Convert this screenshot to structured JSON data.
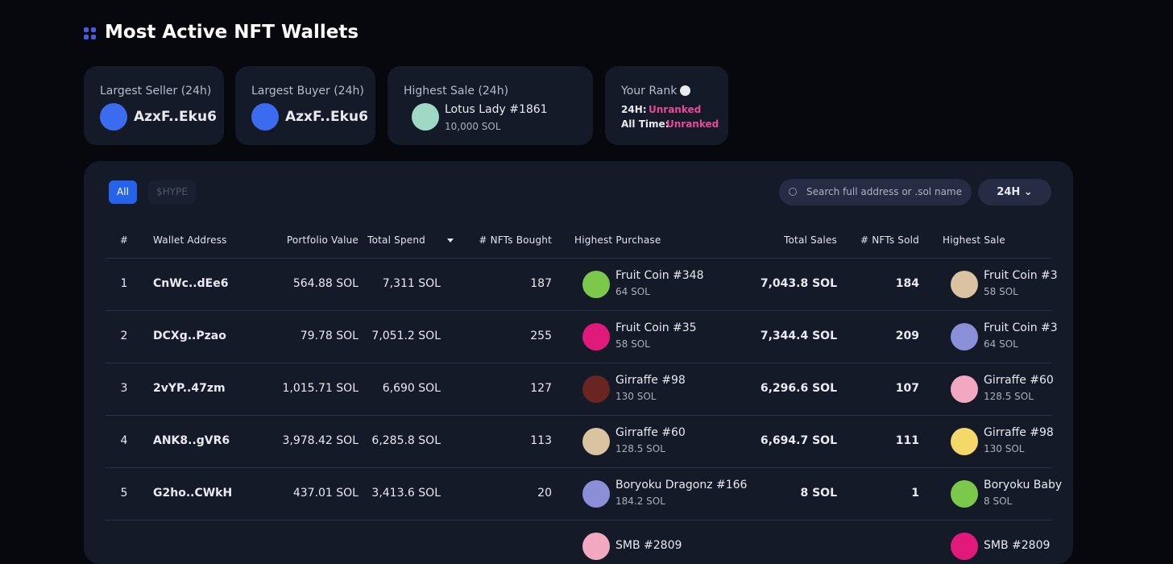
{
  "header": {
    "title": "Most Active NFT Wallets"
  },
  "cards": [
    {
      "label": "Largest Seller (24h)",
      "value": "AzxF..Eku6"
    },
    {
      "label": "Largest Buyer (24h)",
      "value": "AzxF..Eku6"
    },
    {
      "label": "Highest Sale (24h)",
      "name": "Lotus Lady #1861",
      "price": "10,000 SOL"
    },
    {
      "label": "Your Rank",
      "rows": [
        {
          "key": "24H:",
          "value": "Unranked"
        },
        {
          "key": "All Time:",
          "value": "Unranked"
        }
      ]
    }
  ],
  "tabs": [
    "All",
    "$HYPE"
  ],
  "search": {
    "placeholder": "Search full address or .sol name"
  },
  "period": "24H",
  "table": {
    "columns": [
      "#",
      "Wallet Address",
      "Portfolio Value",
      "Total Spend",
      "# NFTs Bought",
      "Highest Purchase",
      "Total Sales",
      "# NFTs Sold",
      "Highest Sale"
    ],
    "rows": [
      {
        "rank": "1",
        "wallet": "CnWc..dEe6",
        "portfolio": "564.88 SOL",
        "spend": "7,311 SOL",
        "bought": "187",
        "purchase": {
          "name": "Fruit Coin #348",
          "price": "64 SOL"
        },
        "sales": "7,043.8 SOL",
        "sold": "184",
        "sale": {
          "name": "Fruit Coin #3",
          "price": "58 SOL"
        }
      },
      {
        "rank": "2",
        "wallet": "DCXg..Pzao",
        "portfolio": "79.78 SOL",
        "spend": "7,051.2 SOL",
        "bought": "255",
        "purchase": {
          "name": "Fruit Coin #35",
          "price": "58 SOL"
        },
        "sales": "7,344.4 SOL",
        "sold": "209",
        "sale": {
          "name": "Fruit Coin #3",
          "price": "64 SOL"
        }
      },
      {
        "rank": "3",
        "wallet": "2vYP..47zm",
        "portfolio": "1,015.71 SOL",
        "spend": "6,690 SOL",
        "bought": "127",
        "purchase": {
          "name": "Girraffe #98",
          "price": "130 SOL"
        },
        "sales": "6,296.6 SOL",
        "sold": "107",
        "sale": {
          "name": "Girraffe #60",
          "price": "128.5 SOL"
        }
      },
      {
        "rank": "4",
        "wallet": "ANK8..gVR6",
        "portfolio": "3,978.42 SOL",
        "spend": "6,285.8 SOL",
        "bought": "113",
        "purchase": {
          "name": "Girraffe #60",
          "price": "128.5 SOL"
        },
        "sales": "6,694.7 SOL",
        "sold": "111",
        "sale": {
          "name": "Girraffe #98",
          "price": "130 SOL"
        }
      },
      {
        "rank": "5",
        "wallet": "G2ho..CWkH",
        "portfolio": "437.01 SOL",
        "spend": "3,413.6 SOL",
        "bought": "20",
        "purchase": {
          "name": "Boryoku Dragonz #166",
          "price": "184.2 SOL"
        },
        "sales": "8 SOL",
        "sold": "1",
        "sale": {
          "name": "Boryoku Baby",
          "price": "8 SOL"
        }
      },
      {
        "purchase": {
          "name": "SMB #2809"
        },
        "sale": {
          "name": "SMB #2809"
        }
      }
    ]
  }
}
